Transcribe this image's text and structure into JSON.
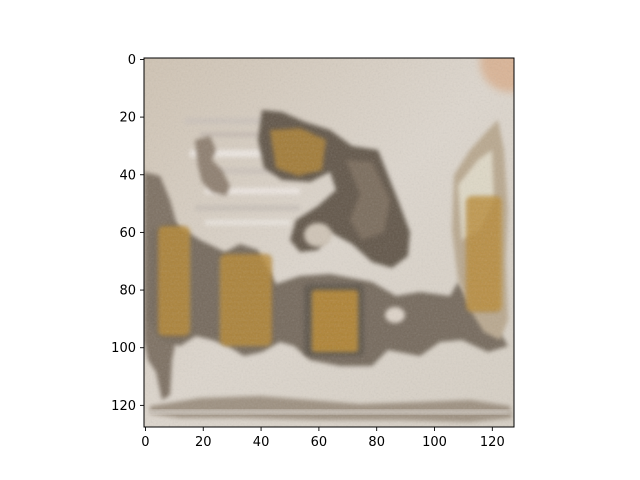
{
  "chart_data": {
    "type": "heatmap",
    "title": "",
    "xlabel": "",
    "ylabel": "",
    "xlim": [
      -0.5,
      127.5
    ],
    "ylim": [
      127.5,
      -0.5
    ],
    "y_inverted": true,
    "grid": false,
    "x_ticks": [
      0,
      20,
      40,
      60,
      80,
      100,
      120
    ],
    "y_ticks": [
      0,
      20,
      40,
      60,
      80,
      100,
      120
    ],
    "x_tick_labels": [
      "0",
      "20",
      "40",
      "60",
      "80",
      "100",
      "120"
    ],
    "y_tick_labels": [
      "0",
      "20",
      "40",
      "60",
      "80",
      "100",
      "120"
    ],
    "image_description_colors": {
      "background": "#ddd5cb",
      "dark_shape": "#5f5345",
      "ochre": "#b8862f",
      "light_band": "#eee8e2"
    }
  }
}
